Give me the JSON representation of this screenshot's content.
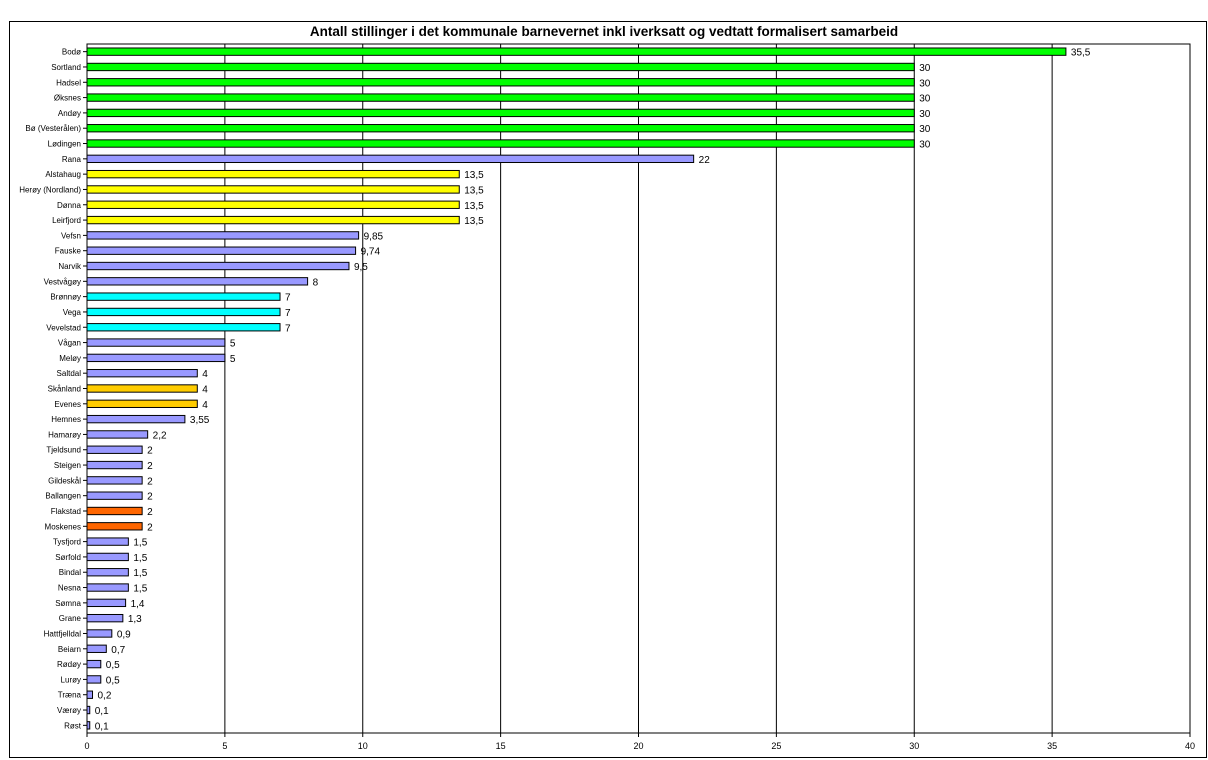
{
  "chart_data": {
    "type": "bar",
    "orientation": "horizontal",
    "title": "Antall stillinger i det kommunale barnevernet inkl iverksatt og vedtatt formalisert samarbeid",
    "xlabel": "",
    "ylabel": "",
    "xlim": [
      0,
      40
    ],
    "xticks": [
      0,
      5,
      10,
      15,
      20,
      25,
      30,
      35,
      40
    ],
    "grid": "vertical",
    "legend": "none",
    "categories": [
      "Bodø",
      "Sortland",
      "Hadsel",
      "Øksnes",
      "Andøy",
      "Bø (Vesterålen)",
      "Lødingen",
      "Rana",
      "Alstahaug",
      "Herøy (Nordland)",
      "Dønna",
      "Leirfjord",
      "Vefsn",
      "Fauske",
      "Narvik",
      "Vestvågøy",
      "Brønnøy",
      "Vega",
      "Vevelstad",
      "Vågan",
      "Meløy",
      "Saltdal",
      "Skånland",
      "Evenes",
      "Hemnes",
      "Hamarøy",
      "Tjeldsund",
      "Steigen",
      "Gildeskål",
      "Ballangen",
      "Flakstad",
      "Moskenes",
      "Tysfjord",
      "Sørfold",
      "Bindal",
      "Nesna",
      "Sømna",
      "Grane",
      "Hattfjelldal",
      "Beiarn",
      "Rødøy",
      "Lurøy",
      "Træna",
      "Værøy",
      "Røst"
    ],
    "values": [
      35.5,
      30,
      30,
      30,
      30,
      30,
      30,
      22,
      13.5,
      13.5,
      13.5,
      13.5,
      9.85,
      9.74,
      9.5,
      8,
      7,
      7,
      7,
      5,
      5,
      4,
      4,
      4,
      3.55,
      2.2,
      2,
      2,
      2,
      2,
      2,
      2,
      1.5,
      1.5,
      1.5,
      1.5,
      1.4,
      1.3,
      0.9,
      0.7,
      0.5,
      0.5,
      0.2,
      0.1,
      0.1
    ],
    "value_labels": [
      "35,5",
      "30",
      "30",
      "30",
      "30",
      "30",
      "30",
      "22",
      "13,5",
      "13,5",
      "13,5",
      "13,5",
      "9,85",
      "9,74",
      "9,5",
      "8",
      "7",
      "7",
      "7",
      "5",
      "5",
      "4",
      "4",
      "4",
      "3,55",
      "2,2",
      "2",
      "2",
      "2",
      "2",
      "2",
      "2",
      "1,5",
      "1,5",
      "1,5",
      "1,5",
      "1,4",
      "1,3",
      "0,9",
      "0,7",
      "0,5",
      "0,5",
      "0,2",
      "0,1",
      "0,1"
    ],
    "bar_colors": [
      "#00ff00",
      "#00ff00",
      "#00ff00",
      "#00ff00",
      "#00ff00",
      "#00ff00",
      "#00ff00",
      "#9999ff",
      "#ffff00",
      "#ffff00",
      "#ffff00",
      "#ffff00",
      "#9999ff",
      "#9999ff",
      "#9999ff",
      "#9999ff",
      "#00ffff",
      "#00ffff",
      "#00ffff",
      "#9999ff",
      "#9999ff",
      "#9999ff",
      "#ffcc00",
      "#ffcc00",
      "#9999ff",
      "#9999ff",
      "#9999ff",
      "#9999ff",
      "#9999ff",
      "#9999ff",
      "#ff6600",
      "#ff6600",
      "#9999ff",
      "#9999ff",
      "#9999ff",
      "#9999ff",
      "#9999ff",
      "#9999ff",
      "#9999ff",
      "#9999ff",
      "#9999ff",
      "#9999ff",
      "#9999ff",
      "#9999ff",
      "#9999ff"
    ]
  }
}
